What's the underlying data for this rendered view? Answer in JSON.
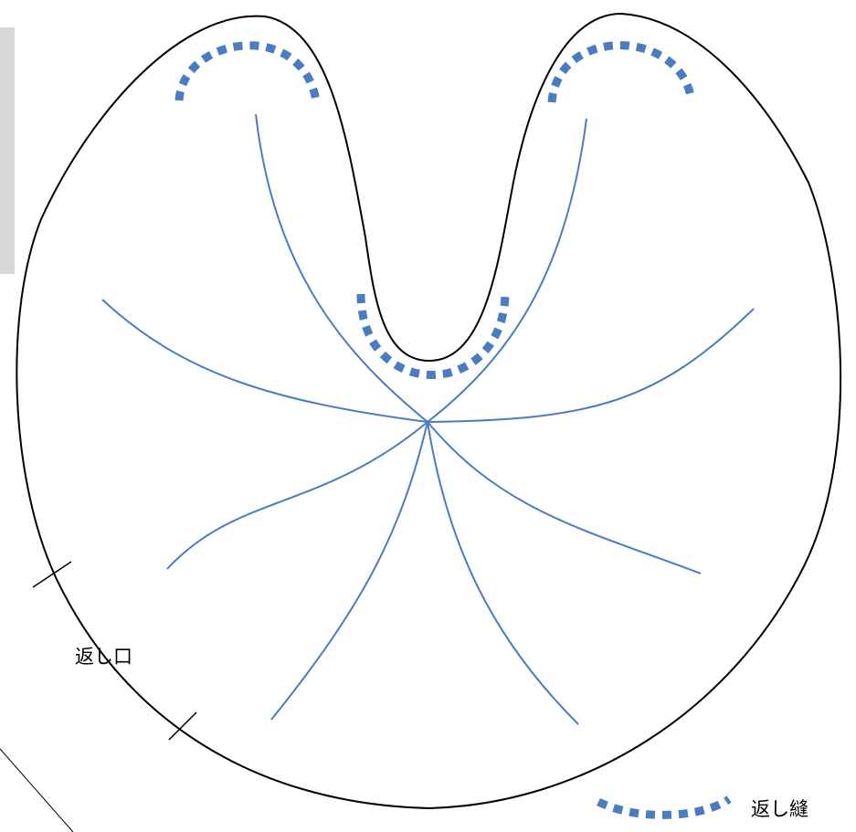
{
  "labels": {
    "opening": "返し口",
    "backstitch": "返し縫"
  }
}
